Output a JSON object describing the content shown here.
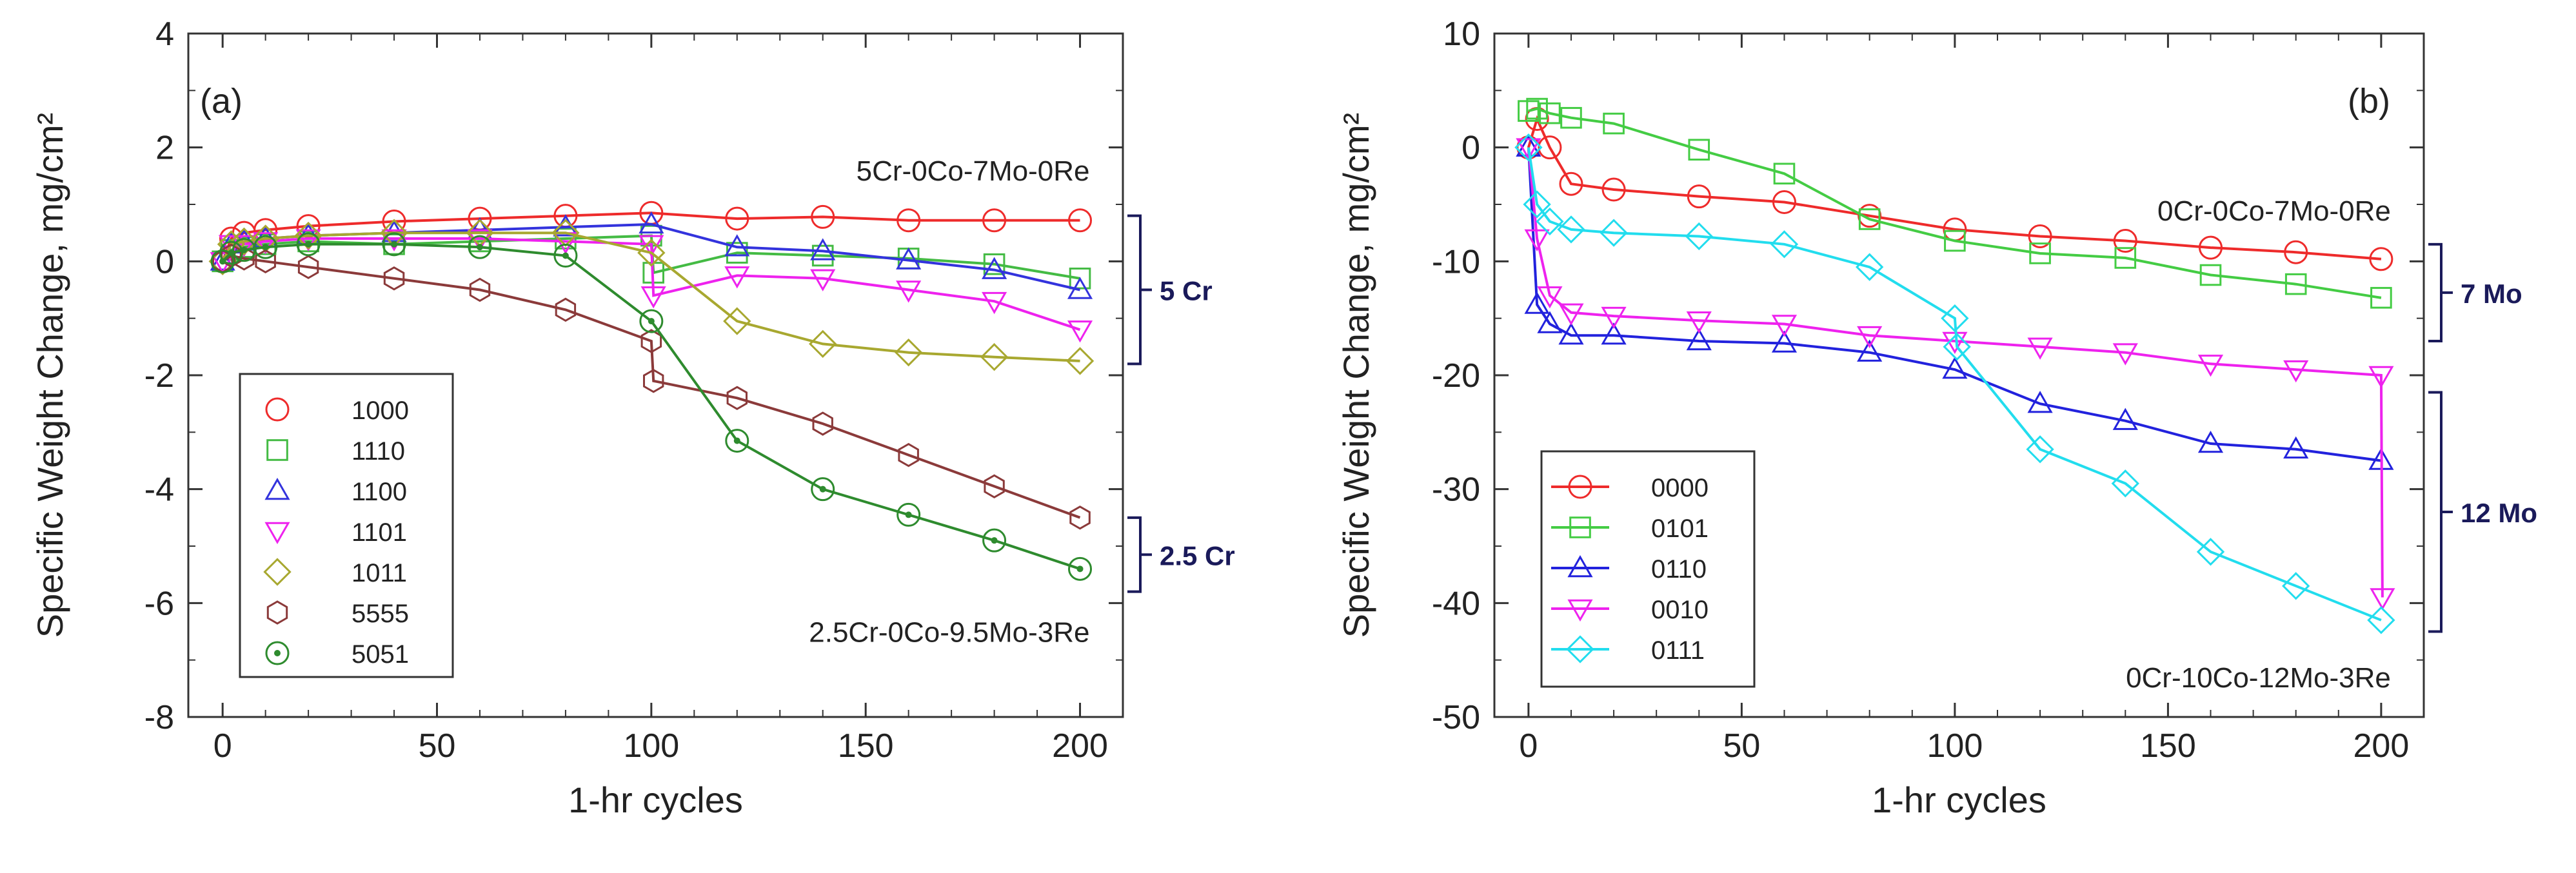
{
  "chart_data": [
    {
      "type": "line",
      "panel_label": "(a)",
      "xlabel": "1-hr cycles",
      "ylabel": "Specific Weight Change, mg/cm²",
      "xlim": [
        -8,
        210
      ],
      "ylim": [
        -8,
        4
      ],
      "xticks": [
        0,
        50,
        100,
        150,
        200
      ],
      "yticks": [
        -8,
        -6,
        -4,
        -2,
        0,
        2,
        4
      ],
      "annotations": [
        {
          "text": "5Cr-0Co-7Mo-0Re",
          "x": 200,
          "y": 1.6
        },
        {
          "text": "2.5Cr-0Co-9.5Mo-3Re",
          "x": 200,
          "y": -6.5
        }
      ],
      "brackets": [
        {
          "label": "5 Cr",
          "y_top": 0.8,
          "y_bottom": -1.8
        },
        {
          "label": "2.5 Cr",
          "y_top": -4.5,
          "y_bottom": -5.8
        }
      ],
      "series": [
        {
          "name": "1000",
          "color": "#ee2b2b",
          "marker": "circle",
          "x": [
            0,
            2,
            5,
            10,
            20,
            40,
            60,
            80,
            100,
            120,
            140,
            160,
            180,
            200
          ],
          "y": [
            0,
            0.4,
            0.5,
            0.55,
            0.62,
            0.7,
            0.75,
            0.8,
            0.85,
            0.75,
            0.78,
            0.72,
            0.72,
            0.72
          ]
        },
        {
          "name": "1110",
          "color": "#44bb44",
          "marker": "square",
          "x": [
            0,
            2,
            5,
            10,
            20,
            40,
            60,
            80,
            100,
            100.5,
            120,
            140,
            160,
            180,
            200
          ],
          "y": [
            0,
            0.2,
            0.25,
            0.3,
            0.35,
            0.3,
            0.35,
            0.4,
            0.45,
            -0.2,
            0.15,
            0.1,
            0.05,
            -0.05,
            -0.3
          ]
        },
        {
          "name": "1100",
          "color": "#3333dd",
          "marker": "triangle-up",
          "x": [
            0,
            2,
            5,
            10,
            20,
            40,
            60,
            80,
            100,
            120,
            140,
            160,
            180,
            200
          ],
          "y": [
            0,
            0.3,
            0.35,
            0.4,
            0.45,
            0.5,
            0.55,
            0.6,
            0.65,
            0.25,
            0.18,
            0.02,
            -0.15,
            -0.5
          ]
        },
        {
          "name": "1101",
          "color": "#ee22ee",
          "marker": "triangle-down",
          "x": [
            0,
            2,
            5,
            10,
            20,
            40,
            60,
            80,
            100,
            100.5,
            120,
            140,
            160,
            180,
            200
          ],
          "y": [
            0,
            0.3,
            0.3,
            0.35,
            0.4,
            0.4,
            0.4,
            0.35,
            0.3,
            -0.6,
            -0.25,
            -0.3,
            -0.5,
            -0.7,
            -1.2
          ]
        },
        {
          "name": "1011",
          "color": "#a8a830",
          "marker": "diamond",
          "x": [
            0,
            2,
            5,
            10,
            20,
            40,
            60,
            80,
            100,
            120,
            140,
            160,
            180,
            200
          ],
          "y": [
            0,
            0.3,
            0.35,
            0.4,
            0.45,
            0.5,
            0.5,
            0.5,
            0.15,
            -1.05,
            -1.45,
            -1.6,
            -1.68,
            -1.75
          ]
        },
        {
          "name": "5555",
          "color": "#8b3a3a",
          "marker": "hexagon",
          "x": [
            0,
            2,
            5,
            10,
            20,
            40,
            60,
            80,
            100,
            100.5,
            120,
            140,
            160,
            180,
            200
          ],
          "y": [
            0,
            0.1,
            0.05,
            0,
            -0.1,
            -0.3,
            -0.5,
            -0.85,
            -1.4,
            -2.1,
            -2.4,
            -2.85,
            -3.4,
            -3.95,
            -4.5
          ]
        },
        {
          "name": "5051",
          "color": "#2e8b2e",
          "marker": "circle-plus",
          "x": [
            0,
            2,
            5,
            10,
            20,
            40,
            60,
            80,
            100,
            120,
            140,
            160,
            180,
            200
          ],
          "y": [
            0,
            0.15,
            0.2,
            0.25,
            0.3,
            0.3,
            0.25,
            0.1,
            -1.05,
            -3.15,
            -4.0,
            -4.45,
            -4.9,
            -5.4
          ]
        }
      ]
    },
    {
      "type": "line",
      "panel_label": "(b)",
      "xlabel": "1-hr cycles",
      "ylabel": "Specific Weight Change, mg/cm²",
      "xlim": [
        -8,
        210
      ],
      "ylim": [
        -50,
        10
      ],
      "xticks": [
        0,
        50,
        100,
        150,
        200
      ],
      "yticks": [
        -50,
        -40,
        -30,
        -20,
        -10,
        0,
        10
      ],
      "annotations": [
        {
          "text": "0Cr-0Co-7Mo-0Re",
          "x": 200,
          "y": -5.5
        },
        {
          "text": "0Cr-10Co-12Mo-3Re",
          "x": 200,
          "y": -46.5
        }
      ],
      "brackets": [
        {
          "label": "7 Mo",
          "y_top": -8.5,
          "y_bottom": -17
        },
        {
          "label": "12 Mo",
          "y_top": -21.5,
          "y_bottom": -42.5
        }
      ],
      "series": [
        {
          "name": "0000",
          "color": "#ee2b2b",
          "marker": "circle",
          "x": [
            0,
            2,
            5,
            10,
            20,
            40,
            60,
            80,
            100,
            120,
            140,
            160,
            180,
            200
          ],
          "y": [
            0,
            2.5,
            0,
            -3.2,
            -3.7,
            -4.3,
            -4.8,
            -6.0,
            -7.2,
            -7.8,
            -8.2,
            -8.8,
            -9.2,
            -9.8
          ]
        },
        {
          "name": "0101",
          "color": "#44cc44",
          "marker": "square",
          "x": [
            0,
            2,
            5,
            10,
            20,
            40,
            60,
            80,
            100,
            120,
            140,
            160,
            180,
            200
          ],
          "y": [
            3.2,
            3.4,
            3.0,
            2.6,
            2.1,
            -0.2,
            -2.3,
            -6.3,
            -8.2,
            -9.3,
            -9.7,
            -11.2,
            -12.0,
            -13.2
          ]
        },
        {
          "name": "0110",
          "color": "#2222dd",
          "marker": "triangle-up",
          "x": [
            0,
            2,
            5,
            10,
            20,
            40,
            60,
            80,
            100,
            120,
            140,
            160,
            180,
            200
          ],
          "y": [
            0,
            -13.8,
            -15.5,
            -16.5,
            -16.5,
            -17.0,
            -17.2,
            -18.0,
            -19.5,
            -22.5,
            -24.0,
            -26.0,
            -26.5,
            -27.5
          ]
        },
        {
          "name": "0010",
          "color": "#ee22ee",
          "marker": "triangle-down",
          "x": [
            0,
            2,
            5,
            10,
            20,
            40,
            60,
            80,
            100,
            120,
            140,
            160,
            180,
            200,
            200.3
          ],
          "y": [
            0,
            -8,
            -13,
            -14.5,
            -14.8,
            -15.2,
            -15.5,
            -16.5,
            -17.0,
            -17.5,
            -18.0,
            -19.0,
            -19.5,
            -20.0,
            -39.5
          ]
        },
        {
          "name": "0111",
          "color": "#22ddee",
          "marker": "diamond",
          "x": [
            0,
            2,
            5,
            10,
            20,
            40,
            60,
            80,
            100,
            100.5,
            120,
            140,
            160,
            180,
            200
          ],
          "y": [
            0,
            -5,
            -6.5,
            -7.2,
            -7.5,
            -7.8,
            -8.5,
            -10.5,
            -15.0,
            -17.5,
            -26.5,
            -29.5,
            -35.5,
            -38.5,
            -41.5
          ]
        }
      ]
    }
  ]
}
